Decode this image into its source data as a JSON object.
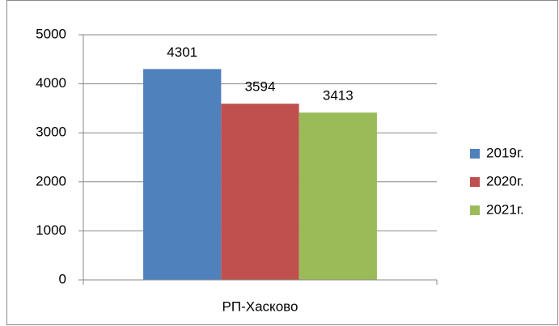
{
  "chart_data": {
    "type": "bar",
    "categories": [
      "РП-Хасково"
    ],
    "series": [
      {
        "name": "2019г.",
        "color": "#4f81bd",
        "values": [
          4301
        ]
      },
      {
        "name": "2020г.",
        "color": "#c0504d",
        "values": [
          3594
        ]
      },
      {
        "name": "2021г.",
        "color": "#9bbb59",
        "values": [
          3413
        ]
      }
    ],
    "ylim": [
      0,
      5000
    ],
    "yticks": [
      0,
      1000,
      2000,
      3000,
      4000,
      5000
    ],
    "grid": true,
    "legend": "right"
  }
}
